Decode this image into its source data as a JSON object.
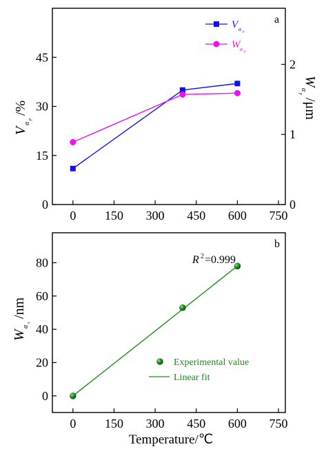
{
  "chart_data": [
    {
      "panel": "a",
      "type": "line",
      "x": [
        0,
        400,
        600
      ],
      "xlim": [
        -75,
        775
      ],
      "xticks": [
        0,
        150,
        300,
        450,
        600,
        750
      ],
      "ylabel": "V",
      "ylabel_sub": "α",
      "ylabel_subsub": "p",
      "ylabel_unit": "/%",
      "ylim": [
        0,
        60
      ],
      "yticks": [
        0,
        15,
        30,
        45
      ],
      "y2label": "W",
      "y2label_sub": "α",
      "y2label_subsub": "p",
      "y2label_unit": "/μm",
      "y2lim": [
        0,
        2.8
      ],
      "y2ticks": [
        0,
        1,
        2
      ],
      "series": [
        {
          "name": "V",
          "name_sub": "α",
          "name_subsub": "p",
          "axis": "left",
          "marker": "square",
          "color": "#1010ee",
          "values": [
            11,
            35,
            37
          ]
        },
        {
          "name": "W",
          "name_sub": "α",
          "name_subsub": "p",
          "axis": "right",
          "marker": "circle",
          "color": "#ee10ee",
          "values": [
            0.89,
            1.57,
            1.59
          ]
        }
      ],
      "legend": "top-right"
    },
    {
      "panel": "b",
      "type": "scatter",
      "x": [
        0,
        400,
        600
      ],
      "values": [
        0,
        53,
        78
      ],
      "xlim": [
        -75,
        775
      ],
      "xticks": [
        0,
        150,
        300,
        450,
        600,
        750
      ],
      "xlabel": "Temperature/℃",
      "ylabel": "W",
      "ylabel_sub": "α",
      "ylabel_subsub": "s",
      "ylabel_unit": "/nm",
      "ylim": [
        -10,
        98
      ],
      "yticks": [
        0,
        20,
        40,
        60,
        80
      ],
      "annotation_base": "R",
      "annotation_sup": "2",
      "annotation_value": "=0.999",
      "series": [
        {
          "name": "Experimental value",
          "marker": "circle",
          "color": "#1e8a1e"
        },
        {
          "name": "Linear fit",
          "marker": "line",
          "color": "#1e8a1e"
        }
      ],
      "fit_line": {
        "x": [
          0,
          600
        ],
        "y": [
          0,
          78
        ]
      },
      "legend": "bottom-right"
    }
  ]
}
